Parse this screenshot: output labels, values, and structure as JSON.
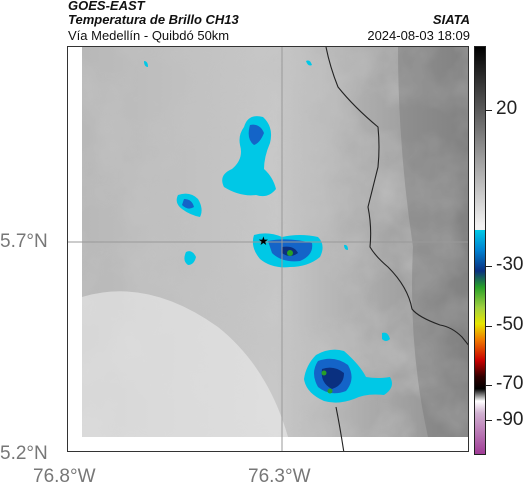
{
  "header": {
    "satellite": "GOES-EAST",
    "product": "Temperatura de Brillo CH13",
    "region": "Vía Medellín - Quibdó 50km",
    "source": "SIATA",
    "datetime": "2024-08-03 18:09"
  },
  "axes": {
    "lat_ticks": [
      "5.7°N",
      "5.2°N"
    ],
    "lon_ticks": [
      "76.8°W",
      "76.3°W"
    ]
  },
  "colorbar": {
    "ticks": [
      "20",
      "-30",
      "-50",
      "-70",
      "-90"
    ],
    "colors": {
      "warm_gray": "#2a2a2a",
      "light_gray": "#e8e8e8",
      "cyan": "#00c8e6",
      "blue": "#1464c8",
      "dark_blue": "#0a3080",
      "green": "#28a028",
      "yellow": "#e6e600",
      "orange": "#f07800",
      "red": "#c80000",
      "black": "#000000",
      "magenta": "#a03c96"
    }
  },
  "map": {
    "marker": "star-marker",
    "border_color": "#222222",
    "crosshair_color": "#999999"
  }
}
